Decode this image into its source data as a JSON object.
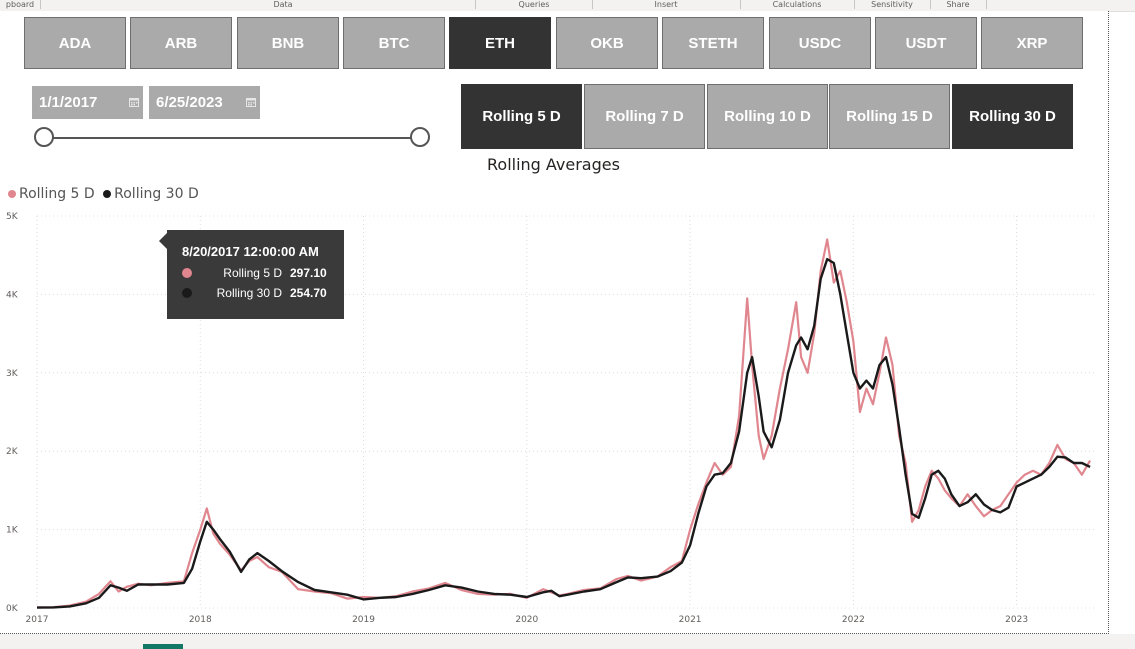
{
  "ribbon": {
    "groups": [
      "pboard",
      "Data",
      "Queries",
      "Insert",
      "Calculations",
      "Sensitivity",
      "Share"
    ]
  },
  "coins": {
    "items": [
      "ADA",
      "ARB",
      "BNB",
      "BTC",
      "ETH",
      "OKB",
      "STETH",
      "USDC",
      "USDT",
      "XRP"
    ],
    "selected": "ETH"
  },
  "date_range": {
    "start": "1/1/2017",
    "end": "6/25/2023"
  },
  "rolling": {
    "items": [
      "Rolling 5 D",
      "Rolling 7 D",
      "Rolling 10 D",
      "Rolling 15 D",
      "Rolling 30 D"
    ],
    "selected": [
      "Rolling 5 D",
      "Rolling 30 D"
    ],
    "title": "Rolling Averages"
  },
  "colors": {
    "slicer_bg": "#aaaaaa",
    "slicer_selected": "#333333",
    "rolling5": "#e0868e",
    "rolling30": "#1a1a1a",
    "tooltip_bg": "#3a3a3a",
    "page_tab": "#117865"
  },
  "legend": [
    {
      "name": "Rolling 5 D",
      "color": "#e0868e"
    },
    {
      "name": "Rolling 30 D",
      "color": "#1a1a1a"
    }
  ],
  "tooltip": {
    "date": "8/20/2017 12:00:00 AM",
    "rows": [
      {
        "name": "Rolling 5 D",
        "value": "297.10",
        "color": "#e0868e"
      },
      {
        "name": "Rolling 30 D",
        "value": "254.70",
        "color": "#1a1a1a"
      }
    ]
  },
  "chart_data": {
    "type": "line",
    "xlabel": "",
    "ylabel": "",
    "x_ticks": [
      "2017",
      "2018",
      "2019",
      "2020",
      "2021",
      "2022",
      "2023"
    ],
    "y_ticks": [
      "0K",
      "1K",
      "2K",
      "3K",
      "4K",
      "5K"
    ],
    "xlim": [
      2017.0,
      2023.48
    ],
    "ylim": [
      0,
      5000
    ],
    "grid": true,
    "legend_position": "top-left",
    "series": [
      {
        "name": "Rolling 5 D",
        "x": [
          2017.0,
          2017.1,
          2017.2,
          2017.3,
          2017.38,
          2017.45,
          2017.5,
          2017.55,
          2017.62,
          2017.7,
          2017.8,
          2017.9,
          2017.95,
          2018.0,
          2018.04,
          2018.08,
          2018.12,
          2018.18,
          2018.25,
          2018.3,
          2018.35,
          2018.42,
          2018.5,
          2018.6,
          2018.7,
          2018.8,
          2018.9,
          2019.0,
          2019.1,
          2019.2,
          2019.3,
          2019.4,
          2019.5,
          2019.6,
          2019.7,
          2019.8,
          2019.9,
          2020.0,
          2020.1,
          2020.15,
          2020.2,
          2020.25,
          2020.35,
          2020.45,
          2020.55,
          2020.62,
          2020.7,
          2020.8,
          2020.88,
          2020.95,
          2021.0,
          2021.05,
          2021.1,
          2021.15,
          2021.2,
          2021.25,
          2021.3,
          2021.35,
          2021.38,
          2021.42,
          2021.45,
          2021.5,
          2021.55,
          2021.6,
          2021.65,
          2021.68,
          2021.72,
          2021.76,
          2021.8,
          2021.84,
          2021.88,
          2021.92,
          2021.96,
          2022.0,
          2022.04,
          2022.08,
          2022.12,
          2022.16,
          2022.2,
          2022.24,
          2022.28,
          2022.32,
          2022.36,
          2022.4,
          2022.44,
          2022.48,
          2022.52,
          2022.56,
          2022.6,
          2022.65,
          2022.7,
          2022.75,
          2022.8,
          2022.85,
          2022.9,
          2022.95,
          2023.0,
          2023.05,
          2023.1,
          2023.15,
          2023.2,
          2023.25,
          2023.3,
          2023.35,
          2023.4,
          2023.45
        ],
        "values": [
          8,
          10,
          30,
          80,
          180,
          340,
          210,
          270,
          310,
          290,
          320,
          340,
          700,
          1000,
          1270,
          950,
          820,
          680,
          480,
          600,
          650,
          520,
          460,
          240,
          210,
          190,
          120,
          140,
          130,
          150,
          210,
          250,
          320,
          230,
          180,
          170,
          180,
          130,
          240,
          200,
          160,
          180,
          230,
          250,
          370,
          410,
          350,
          400,
          520,
          600,
          1000,
          1320,
          1600,
          1850,
          1700,
          1800,
          2450,
          3950,
          3100,
          2200,
          1900,
          2200,
          2800,
          3300,
          3900,
          3200,
          3000,
          3500,
          4300,
          4700,
          4150,
          4300,
          3900,
          3400,
          2500,
          2800,
          2600,
          3000,
          3450,
          3100,
          2200,
          1850,
          1100,
          1250,
          1550,
          1750,
          1650,
          1500,
          1400,
          1300,
          1450,
          1300,
          1170,
          1250,
          1300,
          1450,
          1600,
          1700,
          1750,
          1700,
          1850,
          2080,
          1900,
          1850,
          1700,
          1880
        ]
      },
      {
        "name": "Rolling 30 D",
        "x": [
          2017.0,
          2017.1,
          2017.2,
          2017.3,
          2017.38,
          2017.45,
          2017.5,
          2017.55,
          2017.62,
          2017.7,
          2017.8,
          2017.9,
          2017.95,
          2018.0,
          2018.04,
          2018.08,
          2018.12,
          2018.18,
          2018.25,
          2018.3,
          2018.35,
          2018.42,
          2018.5,
          2018.6,
          2018.7,
          2018.8,
          2018.9,
          2019.0,
          2019.1,
          2019.2,
          2019.3,
          2019.4,
          2019.5,
          2019.6,
          2019.7,
          2019.8,
          2019.9,
          2020.0,
          2020.1,
          2020.15,
          2020.2,
          2020.25,
          2020.35,
          2020.45,
          2020.55,
          2020.62,
          2020.7,
          2020.8,
          2020.88,
          2020.95,
          2021.0,
          2021.05,
          2021.1,
          2021.15,
          2021.2,
          2021.25,
          2021.3,
          2021.35,
          2021.38,
          2021.42,
          2021.45,
          2021.5,
          2021.55,
          2021.6,
          2021.65,
          2021.68,
          2021.72,
          2021.76,
          2021.8,
          2021.84,
          2021.88,
          2021.92,
          2021.96,
          2022.0,
          2022.04,
          2022.08,
          2022.12,
          2022.16,
          2022.2,
          2022.24,
          2022.28,
          2022.32,
          2022.36,
          2022.4,
          2022.44,
          2022.48,
          2022.52,
          2022.56,
          2022.6,
          2022.65,
          2022.7,
          2022.75,
          2022.8,
          2022.85,
          2022.9,
          2022.95,
          2023.0,
          2023.05,
          2023.1,
          2023.15,
          2023.2,
          2023.25,
          2023.3,
          2023.35,
          2023.4,
          2023.45
        ],
        "values": [
          5,
          8,
          20,
          60,
          130,
          290,
          260,
          220,
          300,
          300,
          300,
          320,
          500,
          850,
          1100,
          1000,
          880,
          720,
          460,
          620,
          700,
          600,
          470,
          330,
          230,
          200,
          170,
          110,
          130,
          140,
          180,
          230,
          290,
          260,
          210,
          180,
          170,
          140,
          200,
          220,
          150,
          170,
          210,
          240,
          330,
          390,
          380,
          400,
          470,
          580,
          800,
          1200,
          1550,
          1700,
          1720,
          1850,
          2250,
          3000,
          3200,
          2700,
          2250,
          2050,
          2400,
          3000,
          3350,
          3450,
          3300,
          3600,
          4200,
          4450,
          4400,
          4000,
          3500,
          3000,
          2800,
          2900,
          2800,
          3100,
          3200,
          2850,
          2300,
          1700,
          1200,
          1150,
          1400,
          1700,
          1750,
          1650,
          1450,
          1300,
          1350,
          1450,
          1320,
          1250,
          1220,
          1280,
          1550,
          1600,
          1650,
          1700,
          1800,
          1930,
          1920,
          1850,
          1850,
          1800
        ]
      }
    ]
  }
}
